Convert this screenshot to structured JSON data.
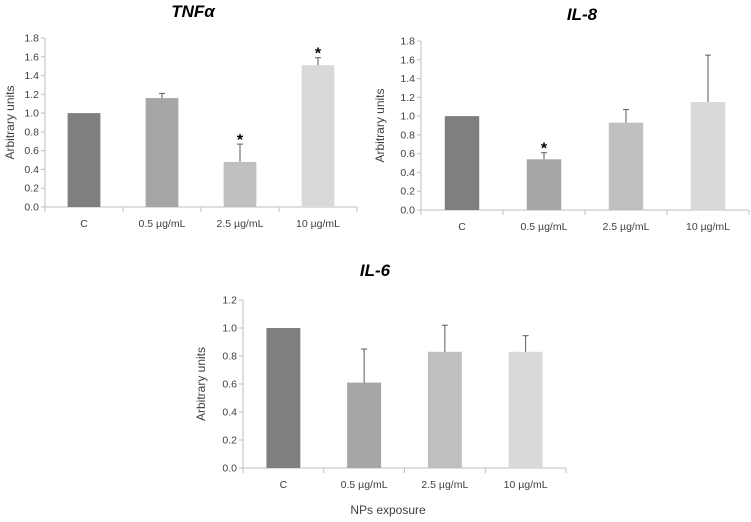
{
  "chart_data": [
    {
      "type": "bar",
      "title": "TNFα",
      "ylabel": "Arbitrary units",
      "xlabel": "",
      "ylim": [
        0,
        1.8
      ],
      "yticks": [
        "0.0",
        "0.2",
        "0.4",
        "0.6",
        "0.8",
        "1.0",
        "1.2",
        "1.4",
        "1.6",
        "1.8"
      ],
      "categories": [
        "C",
        "0.5 µg/mL",
        "2.5 µg/mL",
        "10 µg/mL"
      ],
      "values": [
        1.0,
        1.16,
        0.48,
        1.51
      ],
      "errors": [
        0.0,
        0.05,
        0.19,
        0.08
      ],
      "significance": [
        "",
        "",
        "*",
        "*"
      ],
      "colors": [
        "#7f7f7f",
        "#a6a6a6",
        "#bfbfbf",
        "#d9d9d9"
      ],
      "grid": false
    },
    {
      "type": "bar",
      "title": "IL-8",
      "ylabel": "Arbitrary units",
      "xlabel": "",
      "ylim": [
        0,
        1.8
      ],
      "yticks": [
        "0.0",
        "0.2",
        "0.4",
        "0.6",
        "0.8",
        "1.0",
        "1.2",
        "1.4",
        "1.6",
        "1.8"
      ],
      "categories": [
        "C",
        "0.5 µg/mL",
        "2.5 µg/mL",
        "10 µg/mL"
      ],
      "values": [
        1.0,
        0.54,
        0.93,
        1.15
      ],
      "errors": [
        0.0,
        0.07,
        0.14,
        0.5
      ],
      "significance": [
        "",
        "*",
        "",
        ""
      ],
      "colors": [
        "#7f7f7f",
        "#a6a6a6",
        "#bfbfbf",
        "#d9d9d9"
      ],
      "grid": false
    },
    {
      "type": "bar",
      "title": "IL-6",
      "ylabel": "Arbitrary units",
      "xlabel": "NPs exposure",
      "ylim": [
        0,
        1.2
      ],
      "yticks": [
        "0.0",
        "0.2",
        "0.4",
        "0.6",
        "0.8",
        "1.0",
        "1.2"
      ],
      "categories": [
        "C",
        "0.5 µg/mL",
        "2.5 µg/mL",
        "10 µg/mL"
      ],
      "values": [
        1.0,
        0.61,
        0.83,
        0.83
      ],
      "errors": [
        0.0,
        0.24,
        0.19,
        0.115
      ],
      "significance": [
        "",
        "",
        "",
        ""
      ],
      "colors": [
        "#7f7f7f",
        "#a6a6a6",
        "#bfbfbf",
        "#d9d9d9"
      ],
      "grid": false
    }
  ]
}
